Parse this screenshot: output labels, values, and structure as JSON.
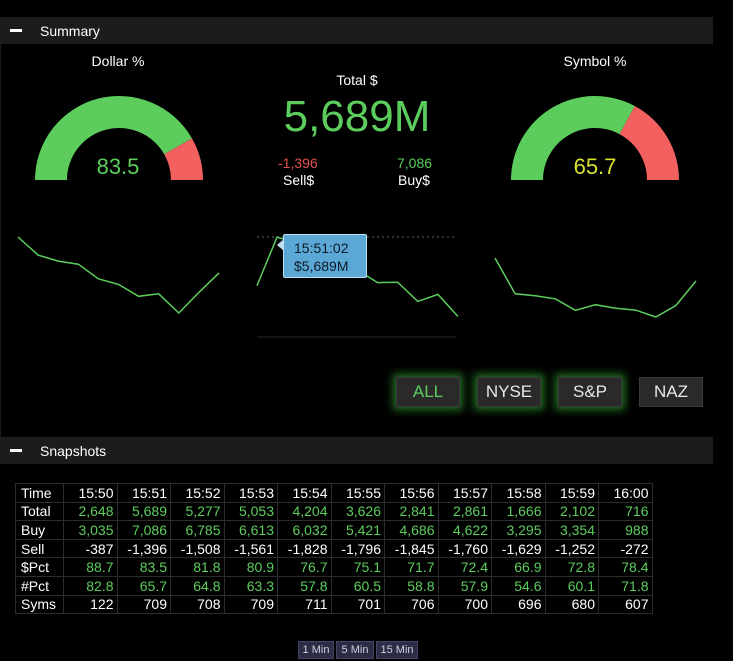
{
  "summary": {
    "title": "Summary",
    "dollar_pct": {
      "label": "Dollar %",
      "value": "83.5",
      "fraction": 0.835
    },
    "symbol_pct": {
      "label": "Symbol %",
      "value": "65.7",
      "fraction": 0.657
    },
    "total": {
      "label": "Total $",
      "value": "5,689M"
    },
    "sell": {
      "value": "-1,396",
      "label": "Sell$"
    },
    "buy": {
      "value": "7,086",
      "label": "Buy$"
    },
    "tooltip": {
      "time": "15:51:02",
      "value": "$5,689M"
    },
    "markets": [
      "ALL",
      "NYSE",
      "S&P",
      "NAZ"
    ],
    "active_market": "ALL"
  },
  "colors": {
    "green": "#5ccd5c",
    "red": "#f26060",
    "yellow": "#d8e030",
    "tooltip": "#5ba8d6"
  },
  "snapshots": {
    "title": "Snapshots",
    "rows": [
      {
        "label": "Time",
        "values": [
          "15:50",
          "15:51",
          "15:52",
          "15:53",
          "15:54",
          "15:55",
          "15:56",
          "15:57",
          "15:58",
          "15:59",
          "16:00"
        ]
      },
      {
        "label": "Total",
        "values": [
          "2,648",
          "5,689",
          "5,277",
          "5,053",
          "4,204",
          "3,626",
          "2,841",
          "2,861",
          "1,666",
          "2,102",
          "716"
        ]
      },
      {
        "label": "Buy",
        "values": [
          "3,035",
          "7,086",
          "6,785",
          "6,613",
          "6,032",
          "5,421",
          "4,686",
          "4,622",
          "3,295",
          "3,354",
          "988"
        ]
      },
      {
        "label": "Sell",
        "values": [
          "-387",
          "-1,396",
          "-1,508",
          "-1,561",
          "-1,828",
          "-1,796",
          "-1,845",
          "-1,760",
          "-1,629",
          "-1,252",
          "-272"
        ]
      },
      {
        "label": "$Pct",
        "values": [
          "88.7",
          "83.5",
          "81.8",
          "80.9",
          "76.7",
          "75.1",
          "71.7",
          "72.4",
          "66.9",
          "72.8",
          "78.4"
        ]
      },
      {
        "label": "#Pct",
        "values": [
          "82.8",
          "65.7",
          "64.8",
          "63.3",
          "57.8",
          "60.5",
          "58.8",
          "57.9",
          "54.6",
          "60.1",
          "71.8"
        ]
      },
      {
        "label": "Syms",
        "values": [
          "122",
          "709",
          "708",
          "709",
          "711",
          "701",
          "706",
          "700",
          "696",
          "680",
          "607"
        ]
      }
    ],
    "intervals": [
      "1 Min",
      "5 Min",
      "15 Min"
    ]
  }
}
